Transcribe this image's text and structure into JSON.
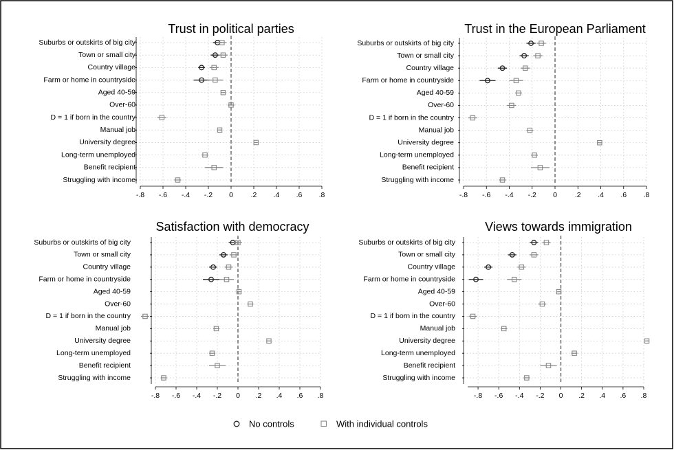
{
  "legend": {
    "no_controls": "No controls",
    "with_controls": "With individual controls"
  },
  "colors": {
    "no_controls": "#222222",
    "with_controls": "#888888"
  },
  "chart_data": [
    {
      "type": "scatter",
      "title": "Trust in political parties",
      "categories": [
        "Suburbs or outskirts of big city",
        "Town or small city",
        "Country village",
        "Farm or home in countryside",
        "Aged 40-59",
        "Over-60",
        "D = 1 if born in the country",
        "Manual job",
        "University degree",
        "Long-term unemployed",
        "Benefit recipient",
        "Struggling with income"
      ],
      "xlim": [
        -0.8,
        0.8
      ],
      "xticks": [
        -0.8,
        -0.6,
        -0.4,
        -0.2,
        0,
        0.2,
        0.4,
        0.6,
        0.8
      ],
      "xtick_labels": [
        "-.8",
        "-.6",
        "-.4",
        "-.2",
        "0",
        ".2",
        ".4",
        ".6",
        ".8"
      ],
      "series": [
        {
          "name": "No controls",
          "marker": "circle",
          "estimates": [
            -0.12,
            -0.14,
            -0.26,
            -0.26,
            null,
            null,
            null,
            null,
            null,
            null,
            null,
            null
          ],
          "ci_low": [
            -0.16,
            -0.18,
            -0.29,
            -0.33,
            null,
            null,
            null,
            null,
            null,
            null,
            null,
            null
          ],
          "ci_high": [
            -0.08,
            -0.1,
            -0.23,
            -0.19,
            null,
            null,
            null,
            null,
            null,
            null,
            null,
            null
          ]
        },
        {
          "name": "With individual controls",
          "marker": "square",
          "estimates": [
            -0.08,
            -0.07,
            -0.15,
            -0.14,
            -0.07,
            0.0,
            -0.61,
            -0.1,
            0.22,
            -0.23,
            -0.15,
            -0.47
          ],
          "ci_low": [
            -0.12,
            -0.11,
            -0.19,
            -0.21,
            -0.09,
            -0.03,
            -0.65,
            -0.12,
            0.2,
            -0.26,
            -0.23,
            -0.5
          ],
          "ci_high": [
            -0.04,
            -0.03,
            -0.11,
            -0.07,
            -0.05,
            0.03,
            -0.57,
            -0.08,
            0.24,
            -0.2,
            -0.07,
            -0.44
          ]
        }
      ]
    },
    {
      "type": "scatter",
      "title": "Trust in the European Parliament",
      "categories": [
        "Suburbs or outskirts of big city",
        "Town or small city",
        "Country village",
        "Farm or home in countryside",
        "Aged 40-59",
        "Over-60",
        "D = 1 if born in the country",
        "Manual job",
        "University degree",
        "Long-term unemployed",
        "Benefit recipient",
        "Struggling with income"
      ],
      "xlim": [
        -0.8,
        0.8
      ],
      "xticks": [
        -0.8,
        -0.6,
        -0.4,
        -0.2,
        0,
        0.2,
        0.4,
        0.6,
        0.8
      ],
      "xtick_labels": [
        "-.8",
        "-.6",
        "-.4",
        "-.2",
        "0",
        ".2",
        ".4",
        ".6",
        ".8"
      ],
      "series": [
        {
          "name": "No controls",
          "marker": "circle",
          "estimates": [
            -0.21,
            -0.27,
            -0.46,
            -0.59,
            null,
            null,
            null,
            null,
            null,
            null,
            null,
            null
          ],
          "ci_low": [
            -0.25,
            -0.31,
            -0.5,
            -0.66,
            null,
            null,
            null,
            null,
            null,
            null,
            null,
            null
          ],
          "ci_high": [
            -0.17,
            -0.23,
            -0.42,
            -0.52,
            null,
            null,
            null,
            null,
            null,
            null,
            null,
            null
          ]
        },
        {
          "name": "With individual controls",
          "marker": "square",
          "estimates": [
            -0.12,
            -0.15,
            -0.26,
            -0.34,
            -0.32,
            -0.38,
            -0.72,
            -0.22,
            0.39,
            -0.18,
            -0.13,
            -0.46
          ],
          "ci_low": [
            -0.16,
            -0.19,
            -0.3,
            -0.4,
            -0.35,
            -0.42,
            -0.76,
            -0.25,
            0.37,
            -0.21,
            -0.21,
            -0.49
          ],
          "ci_high": [
            -0.08,
            -0.11,
            -0.22,
            -0.28,
            -0.29,
            -0.34,
            -0.68,
            -0.19,
            0.41,
            -0.15,
            -0.05,
            -0.43
          ]
        }
      ]
    },
    {
      "type": "scatter",
      "title": "Satisfaction with democracy",
      "categories": [
        "Suburbs or outskirts of big city",
        "Town or small city",
        "Country village",
        "Farm or home in countryside",
        "Aged 40-59",
        "Over-60",
        "D = 1 if born in the country",
        "Manual job",
        "University degree",
        "Long-term unemployed",
        "Benefit recipient",
        "Struggling with income"
      ],
      "xlim": [
        -0.8,
        0.8
      ],
      "xticks": [
        -0.8,
        -0.6,
        -0.4,
        -0.2,
        0,
        0.2,
        0.4,
        0.6,
        0.8
      ],
      "xtick_labels": [
        "-.8",
        "-.6",
        "-.4",
        "-.2",
        "0",
        ".2",
        ".4",
        ".6",
        ".8"
      ],
      "series": [
        {
          "name": "No controls",
          "marker": "circle",
          "estimates": [
            -0.05,
            -0.14,
            -0.24,
            -0.26,
            null,
            null,
            null,
            null,
            null,
            null,
            null,
            null
          ],
          "ci_low": [
            -0.09,
            -0.18,
            -0.28,
            -0.34,
            null,
            null,
            null,
            null,
            null,
            null,
            null,
            null
          ],
          "ci_high": [
            -0.01,
            -0.1,
            -0.2,
            -0.18,
            null,
            null,
            null,
            null,
            null,
            null,
            null,
            null
          ]
        },
        {
          "name": "With individual controls",
          "marker": "square",
          "estimates": [
            0.0,
            -0.04,
            -0.09,
            -0.11,
            0.01,
            0.12,
            -0.9,
            -0.21,
            0.3,
            -0.25,
            -0.2,
            -0.72
          ],
          "ci_low": [
            -0.04,
            -0.08,
            -0.13,
            -0.18,
            -0.01,
            0.09,
            -0.94,
            -0.24,
            0.28,
            -0.28,
            -0.28,
            -0.75
          ],
          "ci_high": [
            0.04,
            0.0,
            -0.05,
            -0.04,
            0.03,
            0.15,
            -0.86,
            -0.18,
            0.32,
            -0.22,
            -0.12,
            -0.69
          ]
        }
      ]
    },
    {
      "type": "scatter",
      "title": "Views towards immigration",
      "categories": [
        "Suburbs or outskirts of big city",
        "Town or small city",
        "Country village",
        "Farm or home in countryside",
        "Aged 40-59",
        "Over-60",
        "D = 1 if born in the country",
        "Manual job",
        "University degree",
        "Long-term unemployed",
        "Benefit recipient",
        "Struggling with income"
      ],
      "xlim": [
        -0.9,
        0.8
      ],
      "xticks": [
        -0.8,
        -0.6,
        -0.4,
        -0.2,
        0,
        0.2,
        0.4,
        0.6,
        0.8
      ],
      "xtick_labels": [
        "-.8",
        "-.6",
        "-.4",
        "-.2",
        "0",
        ".2",
        ".4",
        ".6",
        ".8"
      ],
      "series": [
        {
          "name": "No controls",
          "marker": "circle",
          "estimates": [
            -0.26,
            -0.47,
            -0.7,
            -0.82,
            null,
            null,
            null,
            null,
            null,
            null,
            null,
            null
          ],
          "ci_low": [
            -0.3,
            -0.51,
            -0.74,
            -0.89,
            null,
            null,
            null,
            null,
            null,
            null,
            null,
            null
          ],
          "ci_high": [
            -0.22,
            -0.43,
            -0.66,
            -0.75,
            null,
            null,
            null,
            null,
            null,
            null,
            null,
            null
          ]
        },
        {
          "name": "With individual controls",
          "marker": "square",
          "estimates": [
            -0.14,
            -0.26,
            -0.38,
            -0.45,
            -0.02,
            -0.18,
            -0.85,
            -0.55,
            0.83,
            0.13,
            -0.12,
            -0.33
          ],
          "ci_low": [
            -0.18,
            -0.3,
            -0.42,
            -0.52,
            -0.04,
            -0.22,
            -0.89,
            -0.58,
            0.81,
            0.1,
            -0.2,
            -0.36
          ],
          "ci_high": [
            -0.1,
            -0.22,
            -0.34,
            -0.38,
            0.0,
            -0.14,
            -0.81,
            -0.52,
            0.85,
            0.16,
            -0.04,
            -0.3
          ]
        }
      ]
    }
  ]
}
